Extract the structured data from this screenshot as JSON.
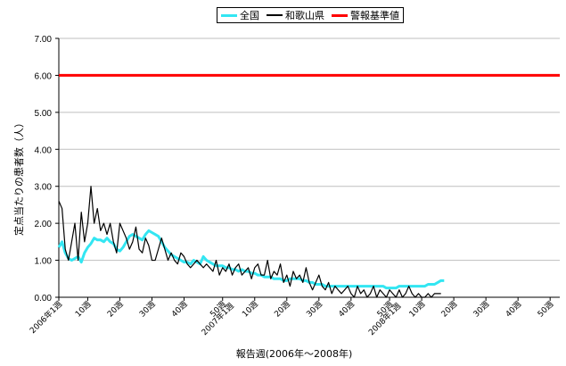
{
  "chart_data": {
    "type": "line",
    "title": "",
    "xlabel": "報告週(2006年〜2008年)",
    "ylabel": "定点当たりの患者数（人）",
    "ylim": [
      0,
      7
    ],
    "yticks": [
      "0.00",
      "1.00",
      "2.00",
      "3.00",
      "4.00",
      "5.00",
      "6.00",
      "7.00"
    ],
    "xticks": [
      "2006年1週",
      "10週",
      "20週",
      "30週",
      "40週",
      "50週\n2007年1週",
      "10週",
      "20週",
      "30週",
      "40週",
      "50週\n2008年1週",
      "10週",
      "20週",
      "30週",
      "40週",
      "50週"
    ],
    "xtick_weeks": [
      1,
      10,
      20,
      30,
      40,
      52,
      62,
      72,
      82,
      92,
      104,
      114,
      124,
      134,
      144,
      154
    ],
    "legend_position": "top-center",
    "grid": "horizontal",
    "series": [
      {
        "name": "全国",
        "color": "#33E6F2",
        "values": [
          1.35,
          1.5,
          1.2,
          1.05,
          1.0,
          1.05,
          1.1,
          0.95,
          1.2,
          1.35,
          1.45,
          1.6,
          1.55,
          1.55,
          1.5,
          1.6,
          1.5,
          1.45,
          1.3,
          1.25,
          1.35,
          1.5,
          1.65,
          1.7,
          1.65,
          1.6,
          1.55,
          1.7,
          1.8,
          1.75,
          1.7,
          1.65,
          1.5,
          1.35,
          1.25,
          1.15,
          1.1,
          1.05,
          1.0,
          0.95,
          0.95,
          0.9,
          1.0,
          0.95,
          0.9,
          1.1,
          1.0,
          0.95,
          0.9,
          0.85,
          0.85,
          0.85,
          0.8,
          0.8,
          0.75,
          0.75,
          0.7,
          0.75,
          0.7,
          0.7,
          0.65,
          0.65,
          0.6,
          0.6,
          0.55,
          0.55,
          0.55,
          0.5,
          0.5,
          0.5,
          0.45,
          0.45,
          0.5,
          0.5,
          0.5,
          0.5,
          0.45,
          0.45,
          0.4,
          0.4,
          0.35,
          0.35,
          0.35,
          0.3,
          0.3,
          0.3,
          0.3,
          0.3,
          0.3,
          0.3,
          0.3,
          0.3,
          0.3,
          0.3,
          0.3,
          0.3,
          0.3,
          0.3,
          0.3,
          0.3,
          0.3,
          0.3,
          0.25,
          0.25,
          0.25,
          0.25,
          0.3,
          0.3,
          0.3,
          0.3,
          0.3,
          0.3,
          0.3,
          0.3,
          0.3,
          0.35,
          0.35,
          0.35,
          0.4,
          0.45,
          0.45
        ]
      },
      {
        "name": "和歌山県",
        "color": "#000000",
        "values": [
          2.6,
          2.4,
          1.3,
          1.0,
          1.5,
          2.0,
          1.0,
          2.3,
          1.5,
          2.0,
          3.0,
          2.0,
          2.4,
          1.8,
          2.0,
          1.7,
          2.0,
          1.5,
          1.2,
          2.0,
          1.8,
          1.6,
          1.3,
          1.5,
          1.9,
          1.3,
          1.2,
          1.6,
          1.4,
          1.0,
          1.0,
          1.3,
          1.6,
          1.3,
          1.0,
          1.2,
          1.0,
          0.9,
          1.2,
          1.1,
          0.9,
          0.8,
          0.9,
          1.0,
          0.9,
          0.8,
          0.9,
          0.8,
          0.7,
          1.0,
          0.6,
          0.8,
          0.7,
          0.9,
          0.6,
          0.8,
          0.9,
          0.6,
          0.7,
          0.8,
          0.5,
          0.8,
          0.9,
          0.6,
          0.6,
          1.0,
          0.5,
          0.7,
          0.6,
          0.9,
          0.4,
          0.6,
          0.3,
          0.7,
          0.5,
          0.6,
          0.4,
          0.8,
          0.4,
          0.2,
          0.4,
          0.6,
          0.3,
          0.2,
          0.4,
          0.1,
          0.3,
          0.2,
          0.1,
          0.2,
          0.3,
          0.1,
          0.0,
          0.3,
          0.1,
          0.2,
          0.0,
          0.1,
          0.3,
          0.0,
          0.2,
          0.1,
          0.0,
          0.2,
          0.1,
          0.0,
          0.2,
          0.0,
          0.1,
          0.3,
          0.1,
          0.0,
          0.1,
          0.0,
          0.0,
          0.1,
          0.0,
          0.1,
          0.1,
          0.1
        ]
      },
      {
        "name": "警報基準値",
        "color": "#FF0000",
        "constant": 6.0
      }
    ]
  }
}
